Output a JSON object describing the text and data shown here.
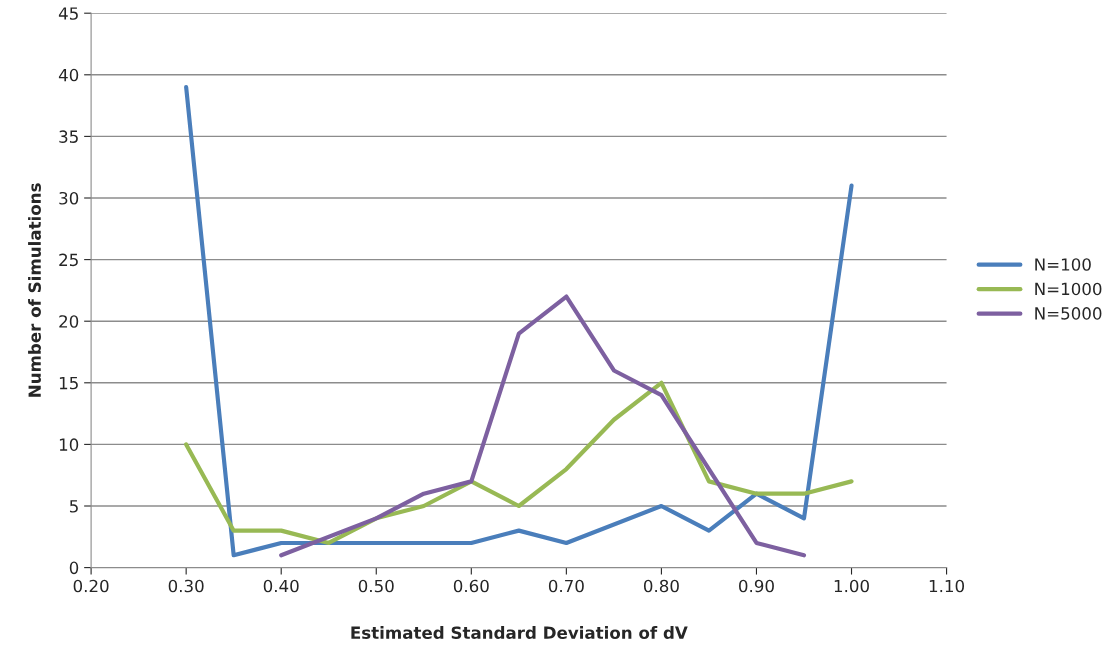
{
  "chart_data": {
    "type": "line",
    "xlabel": "Estimated Standard Deviation of dV",
    "ylabel": "Number of Simulations",
    "xlim": [
      0.2,
      1.1
    ],
    "xticks": [
      {
        "value": 0.2,
        "label": "0.20"
      },
      {
        "value": 0.3,
        "label": "0.30"
      },
      {
        "value": 0.4,
        "label": "0.40"
      },
      {
        "value": 0.5,
        "label": "0.50"
      },
      {
        "value": 0.6,
        "label": "0.60"
      },
      {
        "value": 0.7,
        "label": "0.70"
      },
      {
        "value": 0.8,
        "label": "0.80"
      },
      {
        "value": 0.9,
        "label": "0.90"
      },
      {
        "value": 1.0,
        "label": "1.00"
      },
      {
        "value": 1.1,
        "label": "1.10"
      }
    ],
    "ylim": [
      0,
      45
    ],
    "yticks": [
      0,
      5,
      10,
      15,
      20,
      25,
      30,
      35,
      40,
      45
    ],
    "grid": "y",
    "legend": "right",
    "marker": "none",
    "line_style": "solid",
    "series": [
      {
        "name": "N=100",
        "color": "#4a7ebb",
        "x": [
          0.3,
          0.35,
          0.4,
          0.45,
          0.5,
          0.55,
          0.6,
          0.65,
          0.7,
          0.8,
          0.85,
          0.9,
          0.95,
          1.0
        ],
        "values": [
          39,
          1,
          2,
          2,
          2,
          2,
          2,
          3,
          2,
          5,
          3,
          6,
          4,
          31
        ]
      },
      {
        "name": "N=1000",
        "color": "#98b954",
        "x": [
          0.3,
          0.35,
          0.4,
          0.45,
          0.5,
          0.55,
          0.6,
          0.65,
          0.7,
          0.75,
          0.8,
          0.85,
          0.9,
          0.95,
          1.0
        ],
        "values": [
          10,
          3,
          3,
          2,
          4,
          5,
          7,
          5,
          8,
          12,
          15,
          7,
          6,
          6,
          7
        ]
      },
      {
        "name": "N=5000",
        "color": "#7d60a0",
        "x": [
          0.4,
          0.5,
          0.55,
          0.6,
          0.65,
          0.7,
          0.75,
          0.8,
          0.85,
          0.9,
          0.95
        ],
        "values": [
          1,
          4,
          6,
          7,
          19,
          22,
          16,
          14,
          8,
          2,
          1
        ]
      }
    ]
  }
}
